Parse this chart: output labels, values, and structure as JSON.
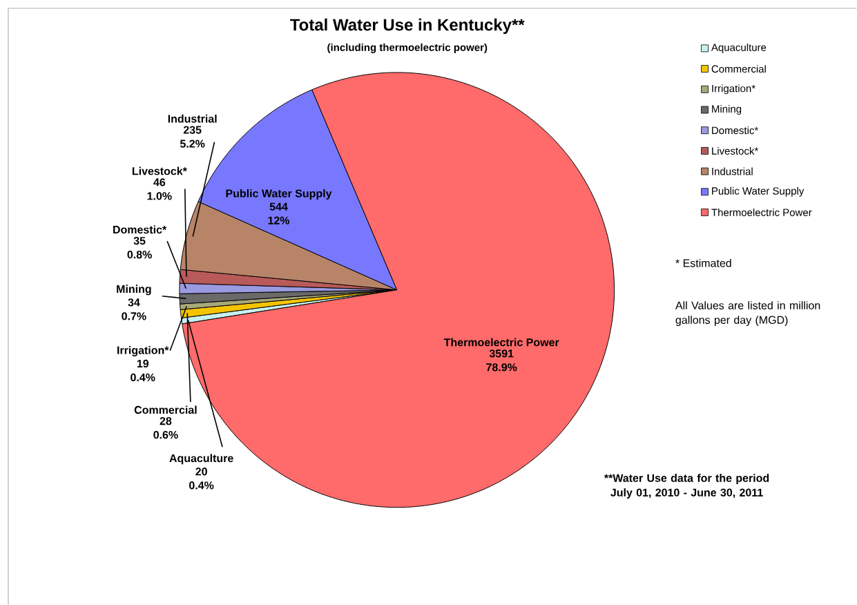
{
  "chart_data": {
    "type": "pie",
    "title": "Total Water Use in Kentucky**",
    "subtitle": "(including thermoelectric power)",
    "categories": [
      "Aquaculture",
      "Commercial",
      "Irrigation*",
      "Mining",
      "Domestic*",
      "Livestock*",
      "Industrial",
      "Public Water Supply",
      "Thermoelectric Power"
    ],
    "values": [
      20,
      28,
      19,
      34,
      35,
      46,
      235,
      544,
      3591
    ],
    "colors": [
      "#c8f0f0",
      "#f5c400",
      "#a8a878",
      "#6a6a6a",
      "#9a9ae0",
      "#b85a5a",
      "#b88468",
      "#7878ff",
      "#ff6a6a"
    ],
    "value_labels": [
      "20 0.4%",
      "28 0.6%",
      "19 0.4%",
      "34 0.7%",
      "35 0.8%",
      "46 1.0%",
      "235 5.2%",
      "544 12%",
      "3591 78.9%"
    ],
    "legend": "right",
    "annotations": [
      "* Estimated",
      "All Values are listed in million gallons per day (MGD)",
      "**Water Use data for the period July 01, 2010 - June 30, 2011"
    ]
  }
}
